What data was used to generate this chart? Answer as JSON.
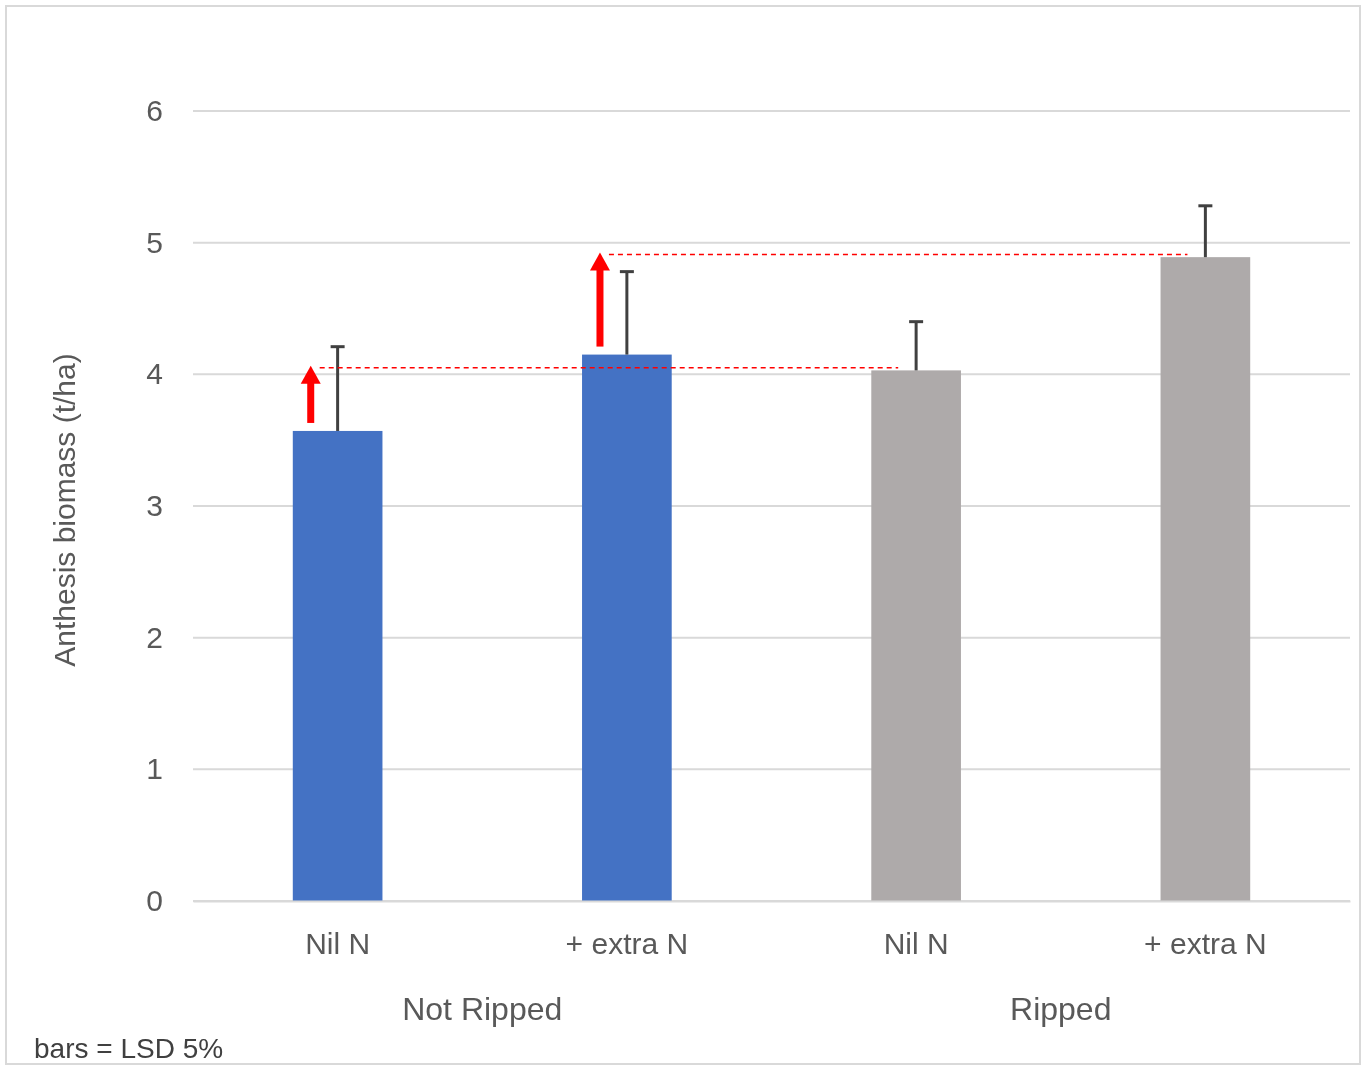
{
  "chart_data": {
    "type": "bar",
    "ylabel": "Anthesis biomass (t/ha)",
    "categories": [
      "Nil N",
      "+ extra N",
      "Nil N",
      "+ extra N"
    ],
    "values": [
      3.57,
      4.15,
      4.03,
      4.89
    ],
    "colors": [
      "#4472c4",
      "#4472c4",
      "#aeaaaa",
      "#aeaaaa"
    ],
    "errors": [
      [
        3.57,
        4.21
      ],
      [
        4.15,
        4.78
      ],
      [
        4.03,
        4.4
      ],
      [
        4.89,
        5.28
      ]
    ],
    "ylim": [
      0,
      6
    ],
    "yticks": [
      0,
      1,
      2,
      3,
      4,
      5,
      6
    ],
    "grid": "y",
    "ref_lines": [
      {
        "axis": "y",
        "value": 4.05,
        "color": "#ff0000",
        "line_style": "dashed"
      },
      {
        "axis": "y",
        "value": 4.91,
        "color": "#ff0000",
        "line_style": "dashed"
      }
    ],
    "annotations": [
      "Not Ripped",
      "Ripped",
      "bars = LSD 5%"
    ]
  }
}
